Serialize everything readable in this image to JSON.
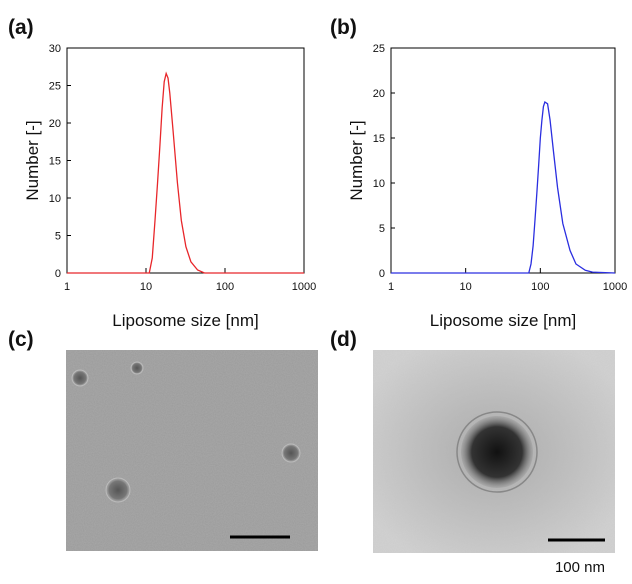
{
  "panel_labels": [
    "(a)",
    "(b)",
    "(c)",
    "(d)"
  ],
  "scale_bar_label": "100 nm",
  "chart_data": [
    {
      "type": "line",
      "xlabel": "Liposome size [nm]",
      "ylabel": "Number [-]",
      "xscale": "log",
      "xlim": [
        1,
        1000
      ],
      "xticks": [
        1,
        10,
        100,
        1000
      ],
      "ylim": [
        0,
        30
      ],
      "yticks": [
        0,
        5,
        10,
        15,
        20,
        25,
        30
      ],
      "x": [
        1,
        11,
        12,
        13,
        14,
        15,
        16,
        17,
        18,
        19,
        20,
        22,
        25,
        28,
        32,
        37,
        45,
        55,
        1000
      ],
      "series": [
        {
          "color": "#e8262a",
          "values": [
            0,
            0,
            2,
            7,
            12,
            17,
            22,
            25.5,
            26.6,
            26,
            24,
            19,
            12,
            7,
            3.5,
            1.5,
            0.4,
            0,
            0
          ]
        }
      ]
    },
    {
      "type": "line",
      "xlabel": "Liposome size [nm]",
      "ylabel": "Number [-]",
      "xscale": "log",
      "xlim": [
        1,
        1000
      ],
      "xticks": [
        1,
        10,
        100,
        1000
      ],
      "ylim": [
        0,
        25
      ],
      "yticks": [
        0,
        5,
        10,
        15,
        20,
        25
      ],
      "x": [
        1,
        70,
        75,
        80,
        85,
        90,
        95,
        100,
        105,
        110,
        115,
        125,
        135,
        150,
        170,
        200,
        250,
        300,
        400,
        500,
        1000
      ],
      "series": [
        {
          "color": "#2a2ee0",
          "values": [
            0,
            0,
            1,
            3,
            6,
            9,
            12,
            15,
            17,
            18.5,
            19,
            18.8,
            17,
            13.5,
            9.5,
            5.5,
            2.5,
            1,
            0.3,
            0.1,
            0
          ]
        }
      ]
    }
  ]
}
